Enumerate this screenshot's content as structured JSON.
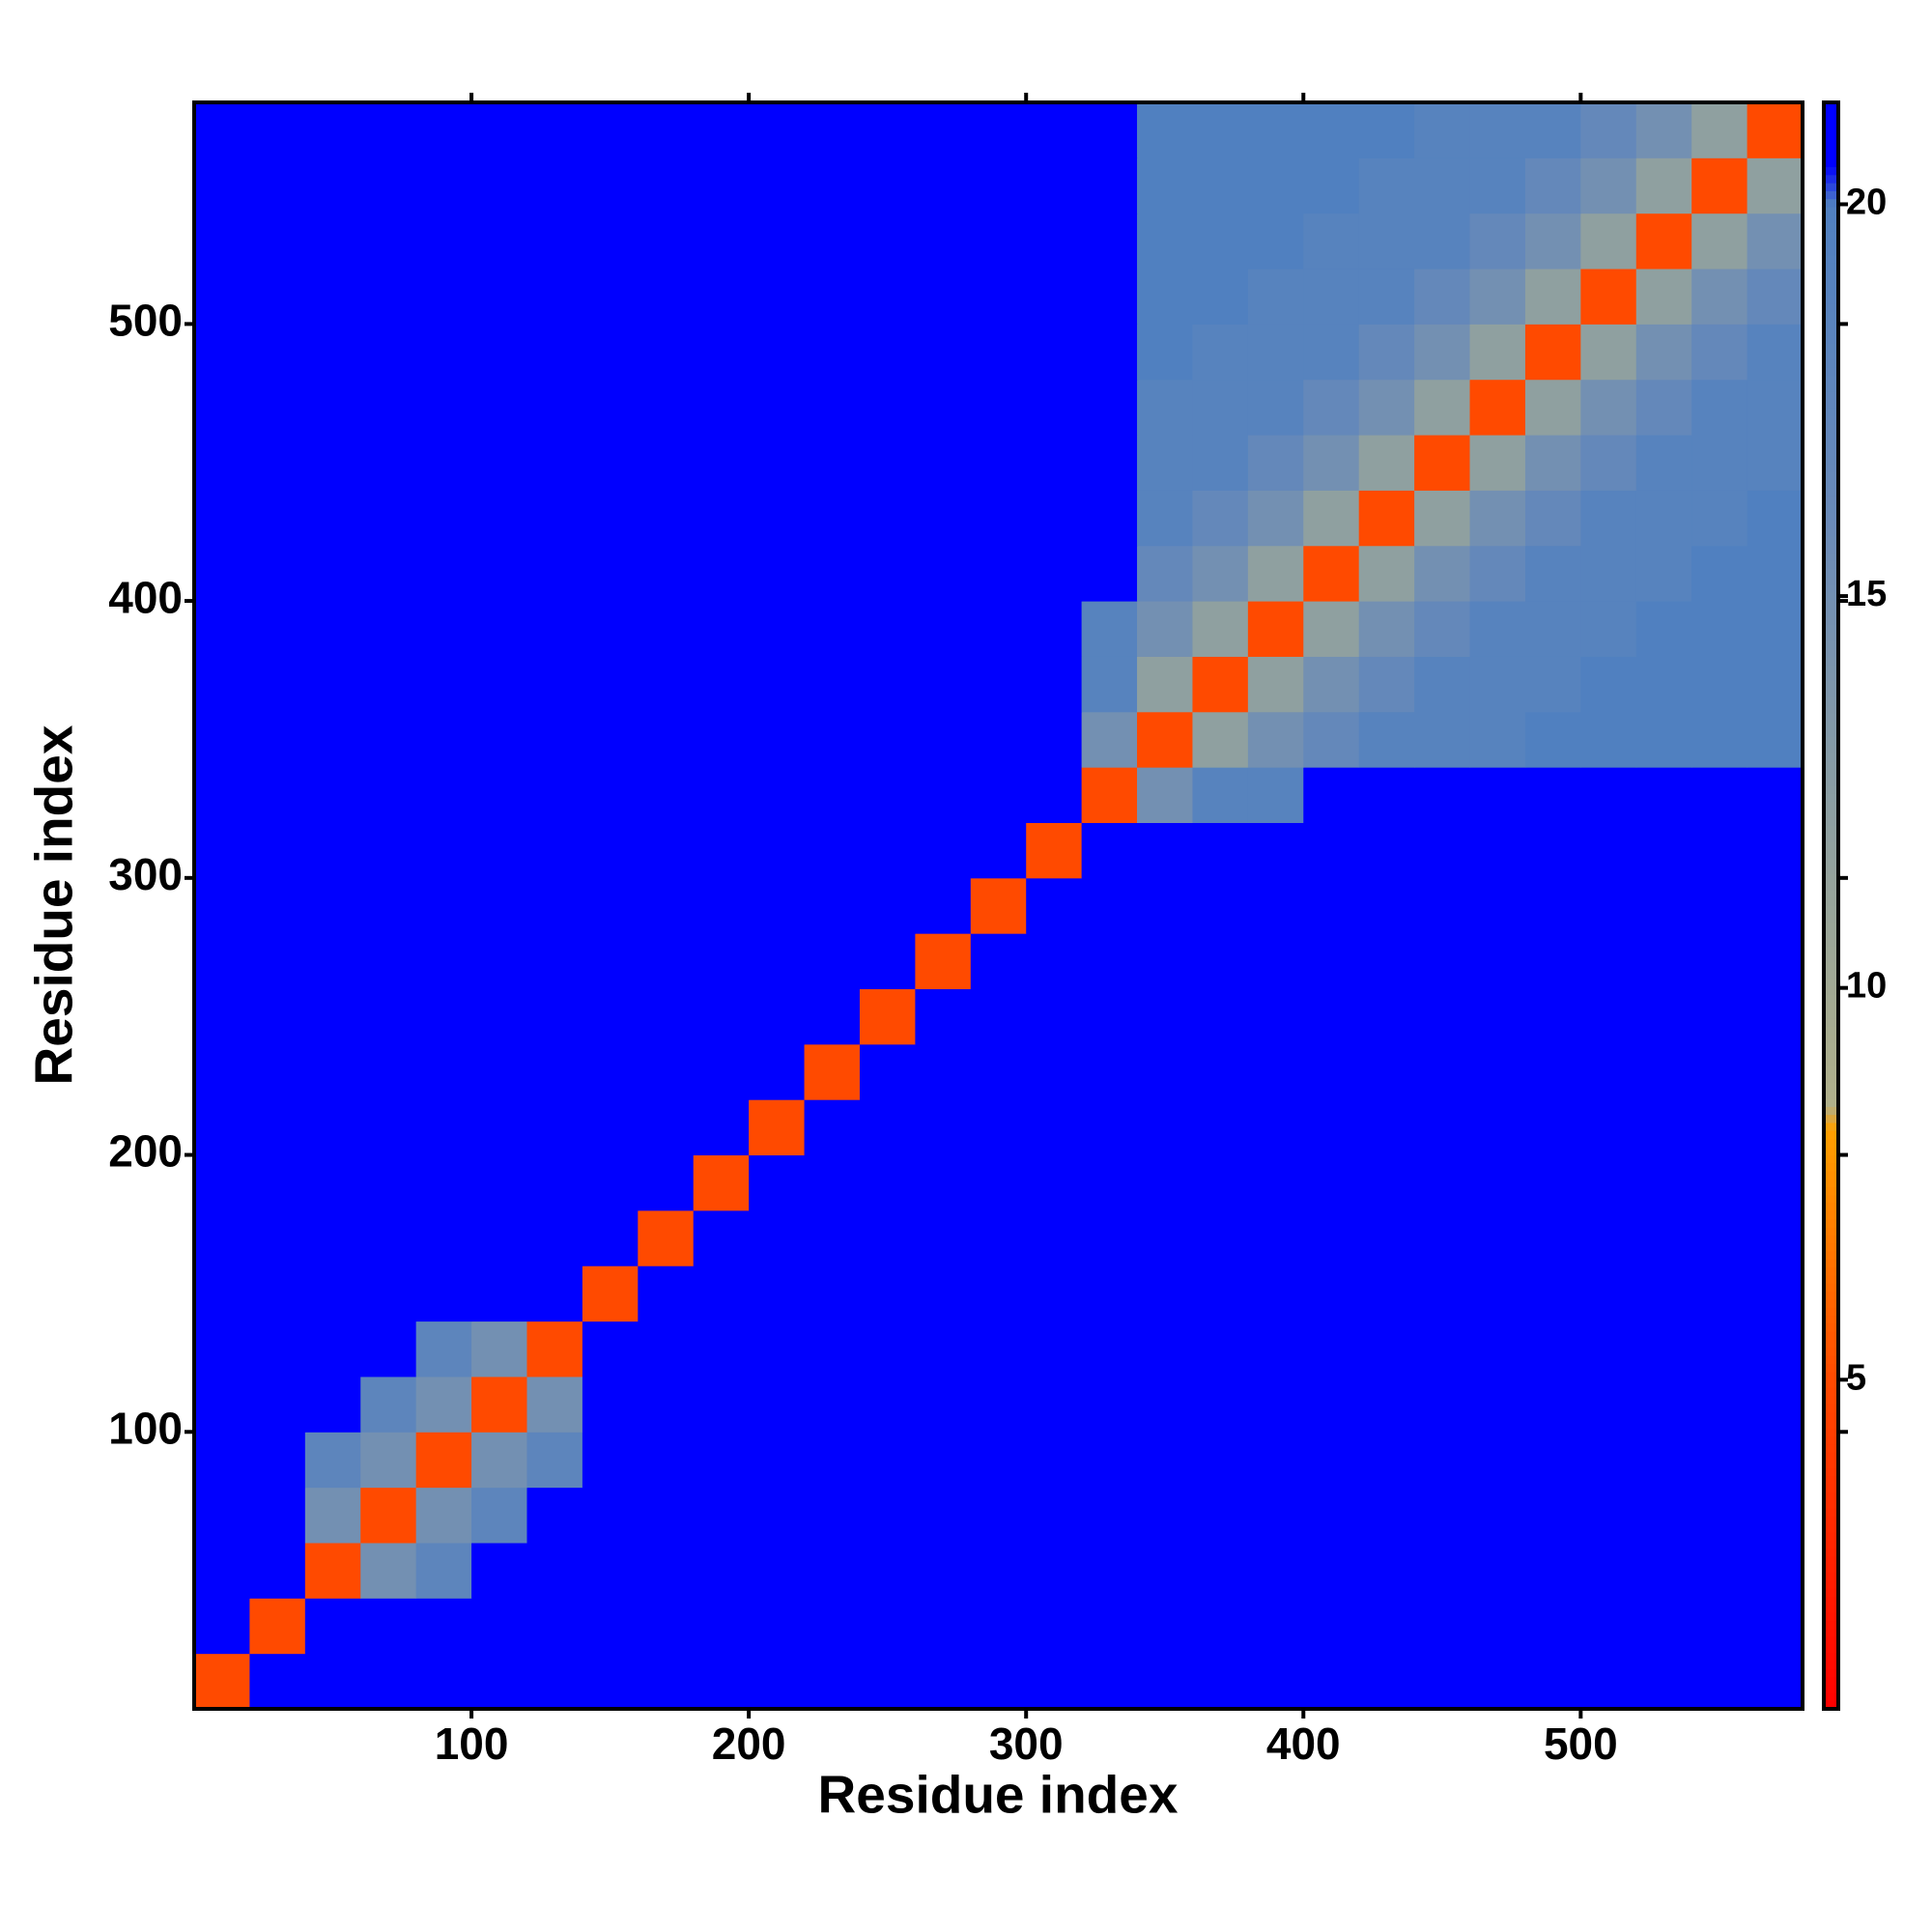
{
  "chart_data": {
    "type": "heatmap",
    "x_label": "Residue index",
    "y_label": "Residue index",
    "x": [
      10,
      30,
      50,
      70,
      90,
      110,
      130,
      150,
      170,
      190,
      210,
      230,
      250,
      270,
      290,
      310,
      330,
      350,
      370,
      390,
      410,
      430,
      450,
      470,
      490,
      510,
      530,
      550,
      570
    ],
    "y": [
      10,
      30,
      50,
      70,
      90,
      110,
      130,
      150,
      170,
      190,
      210,
      230,
      250,
      270,
      290,
      310,
      330,
      350,
      370,
      390,
      410,
      430,
      450,
      470,
      490,
      510,
      530,
      550,
      570
    ],
    "z": [
      [
        5,
        21,
        21,
        21,
        21,
        21,
        21,
        21,
        21,
        21,
        21,
        21,
        21,
        21,
        21,
        21,
        21,
        21,
        21,
        21,
        21,
        21,
        21,
        21,
        21,
        21,
        21,
        21,
        21
      ],
      [
        21,
        5,
        21,
        21,
        21,
        21,
        21,
        21,
        21,
        21,
        21,
        21,
        21,
        21,
        21,
        21,
        21,
        21,
        21,
        21,
        21,
        21,
        21,
        21,
        21,
        21,
        21,
        21,
        21
      ],
      [
        21,
        21,
        5,
        15,
        18,
        21,
        21,
        21,
        21,
        21,
        21,
        21,
        21,
        21,
        21,
        21,
        21,
        21,
        21,
        21,
        21,
        21,
        21,
        21,
        21,
        21,
        21,
        21,
        21
      ],
      [
        21,
        21,
        15,
        5,
        15,
        18,
        21,
        21,
        21,
        21,
        21,
        21,
        21,
        21,
        21,
        21,
        21,
        21,
        21,
        21,
        21,
        21,
        21,
        21,
        21,
        21,
        21,
        21,
        21
      ],
      [
        21,
        21,
        18,
        15,
        5,
        15,
        18,
        21,
        21,
        21,
        21,
        21,
        21,
        21,
        21,
        21,
        21,
        21,
        21,
        21,
        21,
        21,
        21,
        21,
        21,
        21,
        21,
        21,
        21
      ],
      [
        21,
        21,
        21,
        18,
        15,
        5,
        15,
        21,
        21,
        21,
        21,
        21,
        21,
        21,
        21,
        21,
        21,
        21,
        21,
        21,
        21,
        21,
        21,
        21,
        21,
        21,
        21,
        21,
        21
      ],
      [
        21,
        21,
        21,
        21,
        18,
        15,
        5,
        21,
        21,
        21,
        21,
        21,
        21,
        21,
        21,
        21,
        21,
        21,
        21,
        21,
        21,
        21,
        21,
        21,
        21,
        21,
        21,
        21,
        21
      ],
      [
        21,
        21,
        21,
        21,
        21,
        21,
        21,
        5,
        21,
        21,
        21,
        21,
        21,
        21,
        21,
        21,
        21,
        21,
        21,
        21,
        21,
        21,
        21,
        21,
        21,
        21,
        21,
        21,
        21
      ],
      [
        21,
        21,
        21,
        21,
        21,
        21,
        21,
        21,
        5,
        21,
        21,
        21,
        21,
        21,
        21,
        21,
        21,
        21,
        21,
        21,
        21,
        21,
        21,
        21,
        21,
        21,
        21,
        21,
        21
      ],
      [
        21,
        21,
        21,
        21,
        21,
        21,
        21,
        21,
        21,
        5,
        21,
        21,
        21,
        21,
        21,
        21,
        21,
        21,
        21,
        21,
        21,
        21,
        21,
        21,
        21,
        21,
        21,
        21,
        21
      ],
      [
        21,
        21,
        21,
        21,
        21,
        21,
        21,
        21,
        21,
        21,
        5,
        21,
        21,
        21,
        21,
        21,
        21,
        21,
        21,
        21,
        21,
        21,
        21,
        21,
        21,
        21,
        21,
        21,
        21
      ],
      [
        21,
        21,
        21,
        21,
        21,
        21,
        21,
        21,
        21,
        21,
        21,
        5,
        21,
        21,
        21,
        21,
        21,
        21,
        21,
        21,
        21,
        21,
        21,
        21,
        21,
        21,
        21,
        21,
        21
      ],
      [
        21,
        21,
        21,
        21,
        21,
        21,
        21,
        21,
        21,
        21,
        21,
        21,
        5,
        21,
        21,
        21,
        21,
        21,
        21,
        21,
        21,
        21,
        21,
        21,
        21,
        21,
        21,
        21,
        21
      ],
      [
        21,
        21,
        21,
        21,
        21,
        21,
        21,
        21,
        21,
        21,
        21,
        21,
        21,
        5,
        21,
        21,
        21,
        21,
        21,
        21,
        21,
        21,
        21,
        21,
        21,
        21,
        21,
        21,
        21
      ],
      [
        21,
        21,
        21,
        21,
        21,
        21,
        21,
        21,
        21,
        21,
        21,
        21,
        21,
        21,
        5,
        21,
        21,
        21,
        21,
        21,
        21,
        21,
        21,
        21,
        21,
        21,
        21,
        21,
        21
      ],
      [
        21,
        21,
        21,
        21,
        21,
        21,
        21,
        21,
        21,
        21,
        21,
        21,
        21,
        21,
        21,
        5,
        21,
        21,
        21,
        21,
        21,
        21,
        21,
        21,
        21,
        21,
        21,
        21,
        21
      ],
      [
        21,
        21,
        21,
        21,
        21,
        21,
        21,
        21,
        21,
        21,
        21,
        21,
        21,
        21,
        21,
        21,
        5,
        15,
        19,
        19,
        21,
        21,
        21,
        21,
        21,
        21,
        21,
        21,
        21
      ],
      [
        21,
        21,
        21,
        21,
        21,
        21,
        21,
        21,
        21,
        21,
        21,
        21,
        21,
        21,
        21,
        21,
        15,
        5,
        12,
        15,
        17,
        19,
        19,
        19,
        20,
        20,
        20,
        20,
        20
      ],
      [
        21,
        21,
        21,
        21,
        21,
        21,
        21,
        21,
        21,
        21,
        21,
        21,
        21,
        21,
        21,
        21,
        19,
        12,
        5,
        12,
        15,
        17,
        19,
        19,
        19,
        20,
        20,
        20,
        20
      ],
      [
        21,
        21,
        21,
        21,
        21,
        21,
        21,
        21,
        21,
        21,
        21,
        21,
        21,
        21,
        21,
        21,
        19,
        15,
        12,
        5,
        12,
        15,
        17,
        19,
        19,
        19,
        20,
        20,
        20
      ],
      [
        21,
        21,
        21,
        21,
        21,
        21,
        21,
        21,
        21,
        21,
        21,
        21,
        21,
        21,
        21,
        21,
        21,
        17,
        15,
        12,
        5,
        12,
        15,
        17,
        19,
        19,
        19,
        20,
        20
      ],
      [
        21,
        21,
        21,
        21,
        21,
        21,
        21,
        21,
        21,
        21,
        21,
        21,
        21,
        21,
        21,
        21,
        21,
        19,
        17,
        15,
        12,
        5,
        12,
        15,
        17,
        19,
        19,
        19,
        20
      ],
      [
        21,
        21,
        21,
        21,
        21,
        21,
        21,
        21,
        21,
        21,
        21,
        21,
        21,
        21,
        21,
        21,
        21,
        19,
        19,
        17,
        15,
        12,
        5,
        12,
        15,
        17,
        19,
        19,
        19
      ],
      [
        21,
        21,
        21,
        21,
        21,
        21,
        21,
        21,
        21,
        21,
        21,
        21,
        21,
        21,
        21,
        21,
        21,
        19,
        19,
        19,
        17,
        15,
        12,
        5,
        12,
        15,
        17,
        19,
        19
      ],
      [
        21,
        21,
        21,
        21,
        21,
        21,
        21,
        21,
        21,
        21,
        21,
        21,
        21,
        21,
        21,
        21,
        21,
        20,
        19,
        19,
        19,
        17,
        15,
        12,
        5,
        12,
        15,
        17,
        19
      ],
      [
        21,
        21,
        21,
        21,
        21,
        21,
        21,
        21,
        21,
        21,
        21,
        21,
        21,
        21,
        21,
        21,
        21,
        20,
        20,
        19,
        19,
        19,
        17,
        15,
        12,
        5,
        12,
        15,
        17
      ],
      [
        21,
        21,
        21,
        21,
        21,
        21,
        21,
        21,
        21,
        21,
        21,
        21,
        21,
        21,
        21,
        21,
        21,
        20,
        20,
        20,
        19,
        19,
        19,
        17,
        15,
        12,
        5,
        12,
        15
      ],
      [
        21,
        21,
        21,
        21,
        21,
        21,
        21,
        21,
        21,
        21,
        21,
        21,
        21,
        21,
        21,
        21,
        21,
        20,
        20,
        20,
        20,
        19,
        19,
        19,
        17,
        15,
        12,
        5,
        12
      ],
      [
        21,
        21,
        21,
        21,
        21,
        21,
        21,
        21,
        21,
        21,
        21,
        21,
        21,
        21,
        21,
        21,
        21,
        20,
        20,
        20,
        20,
        20,
        19,
        19,
        19,
        17,
        15,
        12,
        5
      ]
    ],
    "xlim": [
      0,
      580
    ],
    "ylim": [
      0,
      580
    ],
    "xticks": [
      100,
      200,
      300,
      400,
      500
    ],
    "yticks": [
      100,
      200,
      300,
      400,
      500
    ],
    "clim": [
      0.8,
      21.3
    ],
    "cticks": [
      5,
      10,
      15,
      20
    ],
    "colorscale": [
      [
        0.8,
        "#ff0000"
      ],
      [
        5,
        "#ff4a00"
      ],
      [
        8.2,
        "#ffa000"
      ],
      [
        8.5,
        "#b0b08a"
      ],
      [
        12,
        "#8fa0a0"
      ],
      [
        16,
        "#6a8ab8"
      ],
      [
        20,
        "#5080c0"
      ],
      [
        20.5,
        "#0000ff"
      ],
      [
        21.3,
        "#0000ff"
      ]
    ]
  }
}
